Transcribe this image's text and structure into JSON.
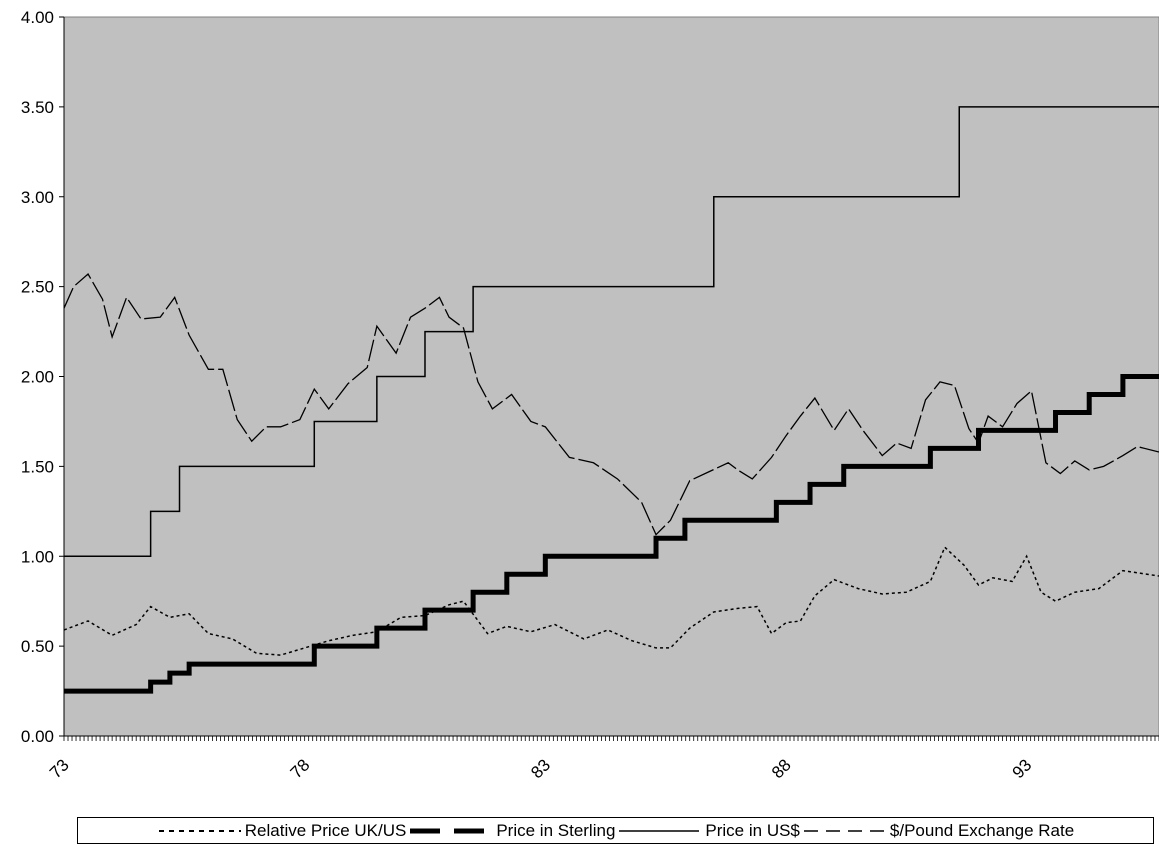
{
  "chart_data": {
    "type": "line",
    "xlabel": "",
    "ylabel": "",
    "xlim": [
      1973,
      1995.75
    ],
    "ylim": [
      0,
      4
    ],
    "y_ticks": [
      "0.00",
      "0.50",
      "1.00",
      "1.50",
      "2.00",
      "2.50",
      "3.00",
      "3.50",
      "4.00"
    ],
    "x_ticks": [
      {
        "value": 1973,
        "label": "73"
      },
      {
        "value": 1978,
        "label": "78"
      },
      {
        "value": 1983,
        "label": "83"
      },
      {
        "value": 1988,
        "label": "88"
      },
      {
        "value": 1993,
        "label": "93"
      }
    ],
    "grid": false,
    "plot_background": "#c0c0c0",
    "legend_position": "bottom",
    "series": [
      {
        "name": "Relative Price UK/US",
        "style": "dotted",
        "color": "#000000",
        "x": [
          1973.0,
          1973.5,
          1974.0,
          1974.5,
          1974.8,
          1975.2,
          1975.6,
          1976.0,
          1976.5,
          1977.0,
          1977.5,
          1978.0,
          1978.5,
          1979.0,
          1979.5,
          1980.0,
          1980.5,
          1981.0,
          1981.3,
          1981.8,
          1982.2,
          1982.7,
          1983.2,
          1983.8,
          1984.3,
          1984.8,
          1985.3,
          1985.6,
          1986.0,
          1986.5,
          1987.0,
          1987.4,
          1987.7,
          1988.0,
          1988.3,
          1988.6,
          1989.0,
          1989.5,
          1990.0,
          1990.5,
          1991.0,
          1991.3,
          1991.7,
          1992.0,
          1992.3,
          1992.7,
          1993.0,
          1993.3,
          1993.6,
          1994.0,
          1994.5,
          1995.0,
          1995.5,
          1995.75
        ],
        "y": [
          0.59,
          0.64,
          0.56,
          0.62,
          0.72,
          0.66,
          0.68,
          0.57,
          0.54,
          0.46,
          0.45,
          0.49,
          0.53,
          0.56,
          0.58,
          0.66,
          0.67,
          0.73,
          0.75,
          0.57,
          0.61,
          0.58,
          0.62,
          0.54,
          0.59,
          0.53,
          0.49,
          0.49,
          0.6,
          0.69,
          0.71,
          0.72,
          0.57,
          0.63,
          0.64,
          0.78,
          0.87,
          0.82,
          0.79,
          0.8,
          0.86,
          1.05,
          0.95,
          0.84,
          0.88,
          0.86,
          1.0,
          0.8,
          0.75,
          0.8,
          0.82,
          0.92,
          0.9,
          0.89
        ]
      },
      {
        "name": "Price in Sterling",
        "style": "step-thick",
        "color": "#000000",
        "x": [
          1973.0,
          1974.4,
          1974.8,
          1975.2,
          1975.6,
          1976.0,
          1978.2,
          1979.5,
          1980.5,
          1981.5,
          1982.2,
          1983.0,
          1984.0,
          1985.3,
          1985.9,
          1987.8,
          1988.5,
          1989.2,
          1990.0,
          1991.0,
          1992.0,
          1992.8,
          1993.6,
          1994.3,
          1995.0,
          1995.75
        ],
        "y": [
          0.25,
          0.25,
          0.3,
          0.35,
          0.4,
          0.4,
          0.5,
          0.6,
          0.7,
          0.8,
          0.9,
          1.0,
          1.0,
          1.1,
          1.2,
          1.3,
          1.4,
          1.5,
          1.5,
          1.6,
          1.7,
          1.7,
          1.8,
          1.9,
          2.0,
          2.0
        ]
      },
      {
        "name": "Price in US$",
        "style": "step-solid",
        "color": "#000000",
        "x": [
          1973.0,
          1974.8,
          1975.4,
          1978.2,
          1979.5,
          1980.5,
          1981.5,
          1986.5,
          1990.0,
          1991.6,
          1995.75
        ],
        "y": [
          1.0,
          1.25,
          1.5,
          1.75,
          2.0,
          2.25,
          2.5,
          3.0,
          3.0,
          3.5,
          3.5
        ]
      },
      {
        "name": "$/Pound Exchange Rate",
        "style": "dashed",
        "color": "#000000",
        "x": [
          1973.0,
          1973.2,
          1973.5,
          1973.8,
          1974.0,
          1974.3,
          1974.6,
          1975.0,
          1975.3,
          1975.6,
          1976.0,
          1976.3,
          1976.6,
          1976.9,
          1977.2,
          1977.5,
          1977.9,
          1978.2,
          1978.5,
          1978.9,
          1979.3,
          1979.5,
          1979.9,
          1980.2,
          1980.5,
          1980.8,
          1981.0,
          1981.3,
          1981.6,
          1981.9,
          1982.3,
          1982.7,
          1983.0,
          1983.5,
          1984.0,
          1984.5,
          1985.0,
          1985.3,
          1985.6,
          1986.0,
          1986.4,
          1986.8,
          1987.0,
          1987.3,
          1987.7,
          1988.0,
          1988.3,
          1988.6,
          1989.0,
          1989.3,
          1989.6,
          1990.0,
          1990.3,
          1990.6,
          1990.9,
          1991.2,
          1991.5,
          1991.8,
          1992.0,
          1992.2,
          1992.5,
          1992.8,
          1993.1,
          1993.4,
          1993.7,
          1994.0,
          1994.3,
          1994.6,
          1995.0,
          1995.3,
          1995.75
        ],
        "y": [
          2.38,
          2.5,
          2.57,
          2.43,
          2.22,
          2.44,
          2.32,
          2.33,
          2.44,
          2.23,
          2.04,
          2.04,
          1.76,
          1.64,
          1.72,
          1.72,
          1.76,
          1.93,
          1.82,
          1.96,
          2.05,
          2.28,
          2.13,
          2.33,
          2.38,
          2.44,
          2.33,
          2.27,
          1.97,
          1.82,
          1.9,
          1.75,
          1.72,
          1.55,
          1.52,
          1.43,
          1.3,
          1.12,
          1.2,
          1.42,
          1.47,
          1.52,
          1.48,
          1.43,
          1.55,
          1.67,
          1.78,
          1.88,
          1.7,
          1.82,
          1.7,
          1.56,
          1.63,
          1.6,
          1.87,
          1.97,
          1.95,
          1.71,
          1.63,
          1.78,
          1.72,
          1.85,
          1.92,
          1.52,
          1.46,
          1.53,
          1.48,
          1.5,
          1.56,
          1.61,
          1.58
        ]
      }
    ]
  }
}
